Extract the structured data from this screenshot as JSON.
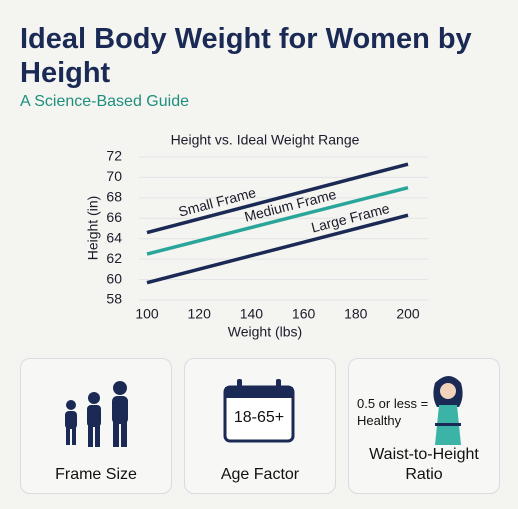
{
  "header": {
    "title": "Ideal Body Weight for Women by Height",
    "subtitle": "A Science-Based Guide"
  },
  "chart_data": {
    "type": "line",
    "title": "Height vs. Ideal Weight Range",
    "x_label": "Weight (lbs)",
    "y_label": "Height (in)",
    "x": [
      100,
      200
    ],
    "series": [
      {
        "name": "Small Frame",
        "color": "#1b2a55",
        "values": [
          64.6,
          71.3
        ]
      },
      {
        "name": "Medium Frame",
        "color": "#2aa59a",
        "values": [
          62.5,
          69.0
        ]
      },
      {
        "name": "Large Frame",
        "color": "#1b2a55",
        "values": [
          59.7,
          66.3
        ]
      }
    ],
    "xlim": [
      100,
      200
    ],
    "xticks": [
      100,
      120,
      140,
      160,
      180,
      200
    ],
    "ylim": [
      58,
      72
    ],
    "yticks": [
      58,
      60,
      62,
      64,
      66,
      68,
      70,
      72
    ],
    "grid": true
  },
  "cards": [
    {
      "label": "Frame Size"
    },
    {
      "label": "Age Factor",
      "icon_text": "18-65+"
    },
    {
      "label": "Waist-to-Height Ratio",
      "icon_text": "0.5 or less = Healthy"
    }
  ]
}
